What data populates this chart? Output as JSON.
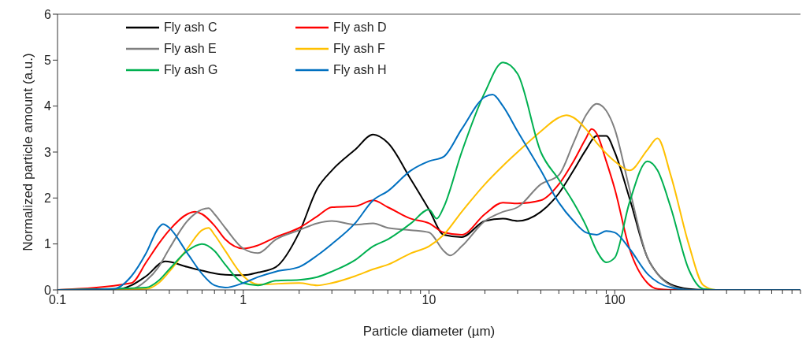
{
  "chart_data": {
    "type": "line",
    "xlabel": "Particle diameter (µm)",
    "ylabel": "Normalized particle amount (a.u.)",
    "log": "x",
    "grid": false,
    "legend": "top left",
    "marker": "none",
    "line_style": "solid",
    "xlim": [
      0.1,
      1000
    ],
    "xticks": [
      0.1,
      {
        "value": 0.2,
        "label": null
      },
      {
        "value": 0.3,
        "label": null
      },
      {
        "value": 0.4,
        "label": null
      },
      {
        "value": 0.5,
        "label": null
      },
      {
        "value": 0.6,
        "label": null
      },
      {
        "value": 0.7,
        "label": null
      },
      {
        "value": 0.8,
        "label": null
      },
      {
        "value": 0.9,
        "label": null
      },
      1,
      {
        "value": 2,
        "label": null
      },
      {
        "value": 3,
        "label": null
      },
      {
        "value": 4,
        "label": null
      },
      {
        "value": 5,
        "label": null
      },
      {
        "value": 6,
        "label": null
      },
      {
        "value": 7,
        "label": null
      },
      {
        "value": 8,
        "label": null
      },
      {
        "value": 9,
        "label": null
      },
      10,
      {
        "value": 20,
        "label": null
      },
      {
        "value": 30,
        "label": null
      },
      {
        "value": 40,
        "label": null
      },
      {
        "value": 50,
        "label": null
      },
      {
        "value": 60,
        "label": null
      },
      {
        "value": 70,
        "label": null
      },
      {
        "value": 80,
        "label": null
      },
      {
        "value": 90,
        "label": null
      },
      100,
      {
        "value": 200,
        "label": null
      },
      {
        "value": 300,
        "label": null
      },
      {
        "value": 400,
        "label": null
      },
      {
        "value": 500,
        "label": null
      },
      {
        "value": 600,
        "label": null
      },
      {
        "value": 700,
        "label": null
      },
      {
        "value": 800,
        "label": null
      },
      {
        "value": 900,
        "label": null
      },
      {
        "value": 1000,
        "label": null
      }
    ],
    "ylim": [
      0,
      6
    ],
    "yticks": [
      0,
      1,
      2,
      3,
      4,
      5,
      6
    ],
    "series": [
      {
        "name": "Fly ash C",
        "color": "#000000",
        "x": [
          0.1,
          0.2,
          0.25,
          0.3,
          0.38,
          0.5,
          0.6,
          0.7,
          0.8,
          1,
          1.2,
          1.5,
          2,
          2.5,
          3,
          4,
          5,
          6,
          8,
          10,
          12,
          15,
          20,
          25,
          30,
          40,
          50,
          60,
          70,
          80,
          90,
          100,
          120,
          150,
          170,
          200,
          250,
          300,
          1000
        ],
        "values": [
          0,
          0,
          0.1,
          0.3,
          0.62,
          0.5,
          0.42,
          0.36,
          0.33,
          0.32,
          0.38,
          0.5,
          1.25,
          2.2,
          2.6,
          3.05,
          3.38,
          3.2,
          2.4,
          1.75,
          1.2,
          1.15,
          1.5,
          1.55,
          1.5,
          1.7,
          2.1,
          2.6,
          3.05,
          3.35,
          3.35,
          3,
          2,
          0.7,
          0.35,
          0.12,
          0.02,
          0,
          0
        ]
      },
      {
        "name": "Fly ash D",
        "color": "#ff0000",
        "x": [
          0.1,
          0.25,
          0.3,
          0.35,
          0.4,
          0.5,
          0.55,
          0.6,
          0.7,
          0.8,
          1,
          1.2,
          1.5,
          2,
          2.5,
          3,
          4,
          5,
          6,
          8,
          10,
          12,
          15,
          20,
          25,
          30,
          40,
          50,
          60,
          70,
          75,
          80,
          90,
          100,
          120,
          150,
          170,
          200,
          1000
        ],
        "values": [
          0,
          0.15,
          0.6,
          1,
          1.3,
          1.65,
          1.7,
          1.65,
          1.4,
          1.1,
          0.9,
          0.97,
          1.15,
          1.35,
          1.6,
          1.8,
          1.82,
          1.95,
          1.8,
          1.55,
          1.45,
          1.25,
          1.2,
          1.65,
          1.9,
          1.88,
          1.95,
          2.3,
          2.8,
          3.3,
          3.5,
          3.4,
          2.8,
          2.2,
          0.9,
          0.15,
          0.02,
          0,
          0
        ]
      },
      {
        "name": "Fly ash E",
        "color": "#808080",
        "x": [
          0.1,
          0.25,
          0.3,
          0.35,
          0.4,
          0.5,
          0.6,
          0.65,
          0.7,
          0.8,
          1,
          1.2,
          1.5,
          2,
          2.5,
          3,
          4,
          5,
          6,
          8,
          10,
          12,
          13,
          15,
          20,
          25,
          30,
          40,
          50,
          60,
          70,
          80,
          90,
          100,
          120,
          150,
          170,
          200,
          250,
          1000
        ],
        "values": [
          0,
          0.02,
          0.2,
          0.5,
          0.9,
          1.5,
          1.75,
          1.78,
          1.65,
          1.35,
          0.9,
          0.8,
          1.1,
          1.3,
          1.45,
          1.5,
          1.42,
          1.45,
          1.35,
          1.3,
          1.25,
          0.85,
          0.75,
          0.95,
          1.5,
          1.7,
          1.8,
          2.3,
          2.5,
          3.2,
          3.8,
          4.05,
          3.9,
          3.5,
          2.2,
          0.7,
          0.35,
          0.1,
          0,
          0
        ]
      },
      {
        "name": "Fly ash F",
        "color": "#ffc000",
        "x": [
          0.1,
          0.3,
          0.35,
          0.4,
          0.5,
          0.6,
          0.65,
          0.7,
          0.8,
          1,
          1.2,
          2,
          2.5,
          3,
          4,
          5,
          6,
          8,
          10,
          12,
          15,
          20,
          25,
          30,
          40,
          50,
          55,
          60,
          70,
          80,
          100,
          120,
          150,
          170,
          200,
          250,
          300,
          350,
          1000
        ],
        "values": [
          0,
          0.02,
          0.15,
          0.4,
          0.9,
          1.3,
          1.35,
          1.2,
          0.85,
          0.3,
          0.12,
          0.15,
          0.1,
          0.15,
          0.3,
          0.45,
          0.55,
          0.8,
          0.95,
          1.2,
          1.7,
          2.3,
          2.7,
          3,
          3.45,
          3.75,
          3.8,
          3.75,
          3.5,
          3.2,
          2.8,
          2.6,
          3.05,
          3.3,
          2.5,
          1,
          0.1,
          0,
          0
        ]
      },
      {
        "name": "Fly ash G",
        "color": "#00b050",
        "x": [
          0.1,
          0.3,
          0.35,
          0.4,
          0.5,
          0.6,
          0.7,
          0.8,
          1,
          1.2,
          1.5,
          2,
          2.5,
          3,
          4,
          5,
          6,
          8,
          10,
          11,
          12,
          15,
          20,
          25,
          30,
          40,
          50,
          60,
          70,
          80,
          90,
          100,
          120,
          150,
          170,
          200,
          250,
          300,
          350,
          1000
        ],
        "values": [
          0,
          0.05,
          0.2,
          0.45,
          0.85,
          1,
          0.85,
          0.55,
          0.15,
          0.1,
          0.2,
          0.22,
          0.28,
          0.4,
          0.65,
          0.95,
          1.1,
          1.45,
          1.75,
          1.55,
          1.8,
          3,
          4.3,
          4.95,
          4.7,
          3,
          2.4,
          1.9,
          1.4,
          0.85,
          0.6,
          0.7,
          1.9,
          2.8,
          2.6,
          1.8,
          0.45,
          0.02,
          0,
          0
        ]
      },
      {
        "name": "Fly ash H",
        "color": "#0070c0",
        "x": [
          0.1,
          0.2,
          0.25,
          0.3,
          0.35,
          0.37,
          0.4,
          0.5,
          0.6,
          0.7,
          0.8,
          1,
          1.2,
          1.5,
          2,
          2.5,
          3,
          4,
          5,
          6,
          8,
          10,
          12,
          15,
          20,
          22,
          25,
          30,
          40,
          50,
          60,
          70,
          80,
          90,
          100,
          120,
          150,
          200,
          250,
          1000
        ],
        "values": [
          0,
          0.02,
          0.3,
          0.8,
          1.35,
          1.43,
          1.35,
          0.8,
          0.35,
          0.1,
          0.05,
          0.15,
          0.28,
          0.4,
          0.5,
          0.75,
          1,
          1.45,
          1.95,
          2.15,
          2.6,
          2.8,
          2.9,
          3.5,
          4.2,
          4.25,
          4,
          3.45,
          2.6,
          1.9,
          1.5,
          1.25,
          1.2,
          1.28,
          1.25,
          0.9,
          0.35,
          0.05,
          0,
          0
        ]
      }
    ]
  }
}
